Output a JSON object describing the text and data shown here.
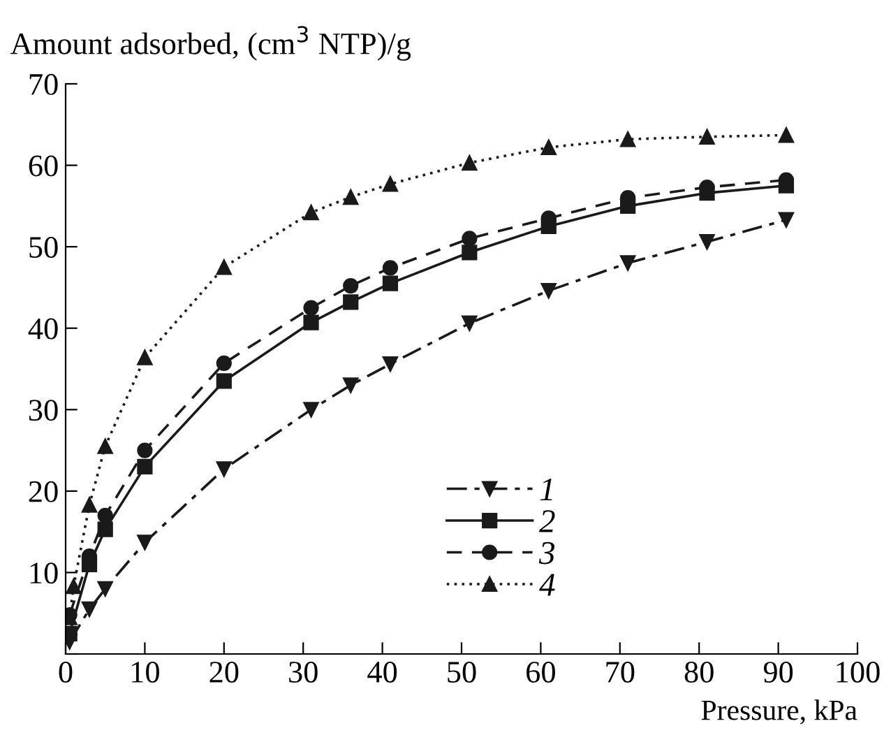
{
  "chart_data": {
    "type": "line",
    "xlabel": "Pressure, kPa",
    "ylabel": "Amount adsorbed, (cm$^{3}$ NTP)/g",
    "xlim": [
      0,
      100
    ],
    "xticks": [
      0,
      10,
      20,
      30,
      40,
      50,
      60,
      70,
      80,
      90,
      100
    ],
    "ylim": [
      0,
      70
    ],
    "yticks": [
      {
        "value": 0,
        "label": null
      },
      10,
      20,
      30,
      40,
      50,
      60,
      70
    ],
    "grid": false,
    "legend": "bottom",
    "series": [
      {
        "name": "1",
        "color": "#1a1a1a",
        "marker": "triangle_down",
        "line_style": "dashdot",
        "x": [
          0.5,
          3,
          5,
          10,
          20,
          31,
          36,
          41,
          51,
          61,
          71,
          81,
          91
        ],
        "values": [
          1.5,
          5.5,
          8,
          13.7,
          22.7,
          30,
          33,
          35.6,
          40.6,
          44.6,
          48,
          50.6,
          53.3
        ]
      },
      {
        "name": "2",
        "color": "#1a1a1a",
        "marker": "square",
        "line_style": "solid",
        "x": [
          0.5,
          3,
          5,
          10,
          20,
          31,
          36,
          41,
          51,
          61,
          71,
          81,
          91
        ],
        "values": [
          2.5,
          11,
          15.3,
          23,
          33.5,
          40.7,
          43.2,
          45.5,
          49.3,
          52.5,
          55,
          56.6,
          57.5
        ]
      },
      {
        "name": "3",
        "color": "#1a1a1a",
        "marker": "circle",
        "line_style": "dashed",
        "x": [
          0.5,
          3,
          5,
          10,
          20,
          31,
          36,
          41,
          51,
          61,
          71,
          81,
          91
        ],
        "values": [
          4.8,
          12,
          17,
          25,
          35.7,
          42.5,
          45.2,
          47.4,
          51,
          53.5,
          56,
          57.3,
          58.2
        ]
      },
      {
        "name": "4",
        "color": "#1a1a1a",
        "marker": "triangle",
        "line_style": "dotted",
        "x": [
          0.5,
          1,
          3,
          5,
          10,
          20,
          31,
          36,
          41,
          51,
          61,
          71,
          81,
          91
        ],
        "values": [
          4.5,
          8.3,
          18.3,
          25.5,
          36.4,
          47.5,
          54.2,
          56.1,
          57.7,
          60.3,
          62.2,
          63.2,
          63.5,
          63.7
        ]
      }
    ]
  }
}
